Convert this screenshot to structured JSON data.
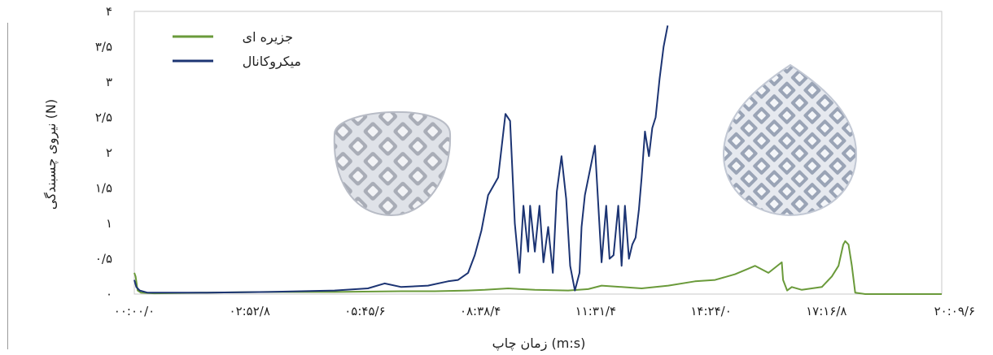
{
  "chart_data": {
    "type": "line",
    "xlabel": "زمان چاپ (m:s)",
    "ylabel": "نیروی چسبندگی (N)",
    "x_tick_labels": [
      "۰۰:۰۰/۰",
      "۰۲:۵۲/۸",
      "۰۵:۴۵/۶",
      "۰۸:۳۸/۴",
      "۱۱:۳۱/۴",
      "۱۴:۲۴/۰",
      "۱۷:۱۶/۸",
      "۲۰:۰۹/۶"
    ],
    "x_tick_seconds": [
      0,
      172.8,
      345.6,
      518.4,
      691.2,
      864.0,
      1036.8,
      1209.6
    ],
    "y_tick_labels": [
      "۰",
      "۰/۵",
      "۱",
      "۱/۵",
      "۲",
      "۲/۵",
      "۳",
      "۳/۵",
      "۴"
    ],
    "ylim": [
      0,
      4
    ],
    "xlim_seconds": [
      0,
      1209.6
    ],
    "grid": false,
    "legend_position": "top-left",
    "series": [
      {
        "name": "جزیره ای",
        "color": "#6a9a3a",
        "x_seconds": [
          0,
          2,
          5,
          10,
          30,
          100,
          200,
          300,
          400,
          450,
          500,
          525,
          560,
          600,
          650,
          680,
          700,
          730,
          760,
          800,
          840,
          870,
          900,
          920,
          930,
          950,
          970,
          972,
          978,
          985,
          1000,
          1030,
          1045,
          1055,
          1062,
          1065,
          1070,
          1075,
          1080,
          1095,
          1209.6
        ],
        "values": [
          0.3,
          0.25,
          0.05,
          0.02,
          0.01,
          0.02,
          0.03,
          0.03,
          0.04,
          0.04,
          0.05,
          0.06,
          0.08,
          0.06,
          0.05,
          0.07,
          0.12,
          0.1,
          0.08,
          0.12,
          0.18,
          0.2,
          0.28,
          0.36,
          0.4,
          0.3,
          0.45,
          0.2,
          0.05,
          0.1,
          0.06,
          0.1,
          0.25,
          0.4,
          0.7,
          0.75,
          0.7,
          0.4,
          0.02,
          0.0,
          0.0
        ]
      },
      {
        "name": "میکروکانال",
        "color": "#1c3473",
        "x_seconds": [
          0,
          3,
          8,
          20,
          100,
          200,
          300,
          350,
          375,
          400,
          440,
          470,
          485,
          500,
          510,
          520,
          530,
          545,
          556,
          563,
          570,
          577,
          583,
          590,
          593,
          600,
          607,
          613,
          620,
          627,
          633,
          640,
          647,
          653,
          660,
          667,
          670,
          675,
          690,
          700,
          707,
          712,
          718,
          725,
          730,
          735,
          741,
          746,
          751,
          756,
          760,
          765,
          771,
          776,
          781,
          787,
          793,
          799
        ],
        "values": [
          0.2,
          0.1,
          0.05,
          0.02,
          0.02,
          0.03,
          0.05,
          0.08,
          0.15,
          0.1,
          0.12,
          0.18,
          0.2,
          0.3,
          0.55,
          0.9,
          1.4,
          1.65,
          2.55,
          2.45,
          1.0,
          0.3,
          1.25,
          0.6,
          1.25,
          0.6,
          1.25,
          0.45,
          0.95,
          0.3,
          1.45,
          1.95,
          1.35,
          0.4,
          0.05,
          0.3,
          0.95,
          1.4,
          2.1,
          0.45,
          1.25,
          0.5,
          0.55,
          1.25,
          0.4,
          1.25,
          0.5,
          0.7,
          0.8,
          1.2,
          1.65,
          2.3,
          1.95,
          2.35,
          2.5,
          3.05,
          3.5,
          3.8
        ]
      }
    ]
  }
}
